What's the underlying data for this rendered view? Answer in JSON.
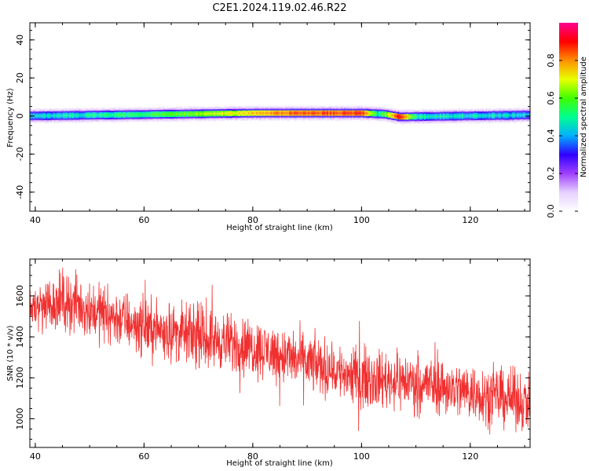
{
  "title": "C2E1.2024.119.02.46.R22",
  "chart_data": [
    {
      "type": "heatmap",
      "xlabel": "Height of straight line (km)",
      "ylabel": "Frequency (Hz)",
      "xlim": [
        39,
        131
      ],
      "ylim": [
        -50,
        49
      ],
      "xticks": [
        40,
        60,
        80,
        100,
        120
      ],
      "yticks": [
        -40,
        -20,
        0,
        20,
        40
      ],
      "colorbar": {
        "label": "Normalized spectral amplitude",
        "ticks": [
          0.0,
          0.2,
          0.4,
          0.6,
          0.8
        ],
        "range": [
          0,
          1
        ],
        "colormap": [
          "#ffffff",
          "#e6d0ff",
          "#a040ff",
          "#3000ff",
          "#00b0ff",
          "#00ff90",
          "#40ff00",
          "#e8ff00",
          "#ff9000",
          "#ff0000",
          "#ff0090"
        ]
      },
      "band": {
        "center_hz": [
          {
            "km": 39,
            "hz": 0
          },
          {
            "km": 80,
            "hz": 1.5
          },
          {
            "km": 100,
            "hz": 1.5
          },
          {
            "km": 104,
            "hz": 1
          },
          {
            "km": 107,
            "hz": -0.5
          },
          {
            "km": 131,
            "hz": 0.5
          }
        ],
        "peak_amplitude": [
          {
            "km": 39,
            "amp": 0.45
          },
          {
            "km": 60,
            "amp": 0.55
          },
          {
            "km": 75,
            "amp": 0.7
          },
          {
            "km": 85,
            "amp": 0.85
          },
          {
            "km": 100,
            "amp": 0.9
          },
          {
            "km": 103,
            "amp": 0.5
          },
          {
            "km": 107,
            "amp": 0.95
          },
          {
            "km": 110,
            "amp": 0.5
          },
          {
            "km": 131,
            "amp": 0.45
          }
        ]
      }
    },
    {
      "type": "line",
      "xlabel": "Height of straight line (km)",
      "ylabel": "SNR (10 * v/v)",
      "xlim": [
        39,
        131
      ],
      "ylim": [
        860,
        1780
      ],
      "xticks": [
        40,
        60,
        80,
        100,
        120
      ],
      "yticks": [
        1000,
        1200,
        1400,
        1600
      ],
      "color": "#f03030",
      "trend": {
        "x": [
          39,
          45,
          60,
          80,
          100,
          110,
          131
        ],
        "y": [
          1540,
          1580,
          1450,
          1350,
          1200,
          1180,
          1080
        ]
      },
      "noise_amplitude": 120
    }
  ]
}
